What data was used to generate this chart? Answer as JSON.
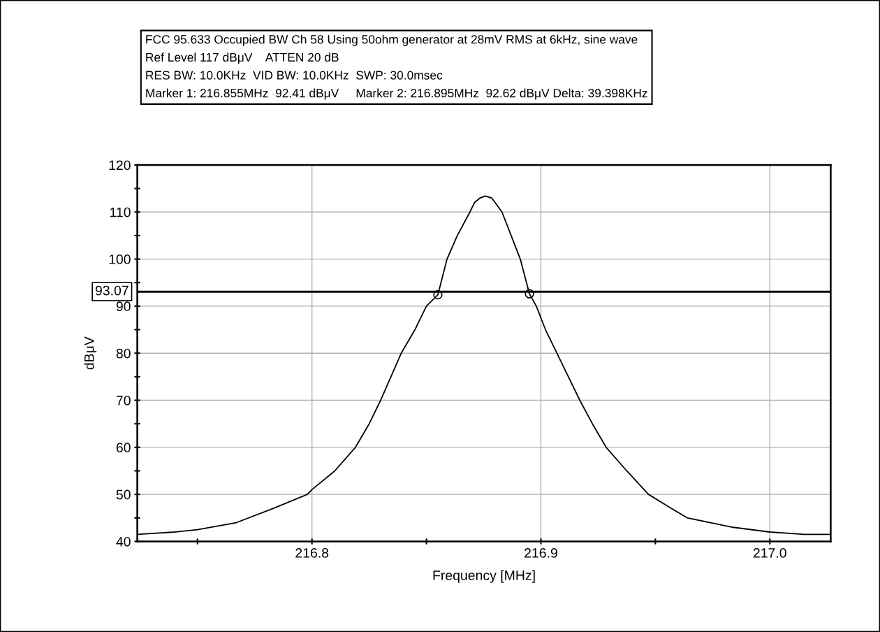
{
  "chart_data": {
    "type": "line",
    "title": "FCC 95.633 Occupied BW Ch 58 Using 50ohm generator at 28mV RMS at 6kHz, sine wave",
    "annotations": [
      "Ref Level 117 dBμV    ATTEN 20 dB",
      "RES BW: 10.0KHz  VID BW: 10.0KHz  SWP: 30.0msec",
      "Marker 1: 216.855MHz  92.41 dBμV     Marker 2: 216.895MHz  92.62 dBμV Delta: 39.398KHz"
    ],
    "xlabel": "Frequency [MHz]",
    "ylabel": "dBμV",
    "series": [
      {
        "color": "#000000",
        "marker": "none",
        "x": [
          216.724,
          216.74,
          216.75,
          216.767,
          216.783,
          216.798,
          216.8,
          216.81,
          216.819,
          216.825,
          216.83,
          216.8345,
          216.839,
          216.845,
          216.85,
          216.855,
          216.859,
          216.8635,
          216.869,
          216.871,
          216.8735,
          216.8757,
          216.8785,
          216.88,
          216.883,
          216.887,
          216.891,
          216.895,
          216.898,
          216.902,
          216.907,
          216.912,
          216.917,
          216.9225,
          216.9285,
          216.9375,
          216.947,
          216.957,
          216.964,
          216.984,
          217.0,
          217.015,
          217.026
        ],
        "values": [
          41.5,
          42,
          42.5,
          44,
          47,
          50,
          51,
          55,
          60,
          65,
          70,
          75,
          80,
          85,
          90,
          92.41,
          100,
          105,
          110,
          112,
          113,
          113.4,
          113,
          112,
          110,
          105,
          100,
          92.62,
          90,
          85,
          80,
          75,
          70,
          65,
          60,
          55,
          50,
          47,
          45,
          43,
          42,
          41.5,
          41.5
        ]
      },
      {
        "type": "scatter",
        "color": "#000000",
        "marker": "circle",
        "x": [
          216.855,
          216.895
        ],
        "values": [
          92.41,
          92.62
        ]
      }
    ],
    "ref_lines": [
      {
        "axis": "y",
        "value": 93.07,
        "label": "93.07",
        "color": "#000000"
      }
    ],
    "xlim": [
      216.7237,
      217.0266
    ],
    "xticks": [
      {
        "value": 216.75,
        "label": null
      },
      {
        "value": 216.8,
        "label": "216.8"
      },
      {
        "value": 216.85,
        "label": null
      },
      {
        "value": 216.9,
        "label": "216.9"
      },
      {
        "value": 216.95,
        "label": null
      },
      {
        "value": 217.0,
        "label": "217.0"
      }
    ],
    "ylim": [
      40,
      120
    ],
    "yticks": [
      40,
      {
        "value": 45,
        "label": null
      },
      50,
      {
        "value": 55,
        "label": null
      },
      60,
      {
        "value": 65,
        "label": null
      },
      70,
      {
        "value": 75,
        "label": null
      },
      80,
      {
        "value": 85,
        "label": null
      },
      90,
      {
        "value": 95,
        "label": null
      },
      100,
      {
        "value": 105,
        "label": null
      },
      110,
      {
        "value": 115,
        "label": null
      },
      120
    ],
    "grid": true,
    "line_style": "solid"
  }
}
